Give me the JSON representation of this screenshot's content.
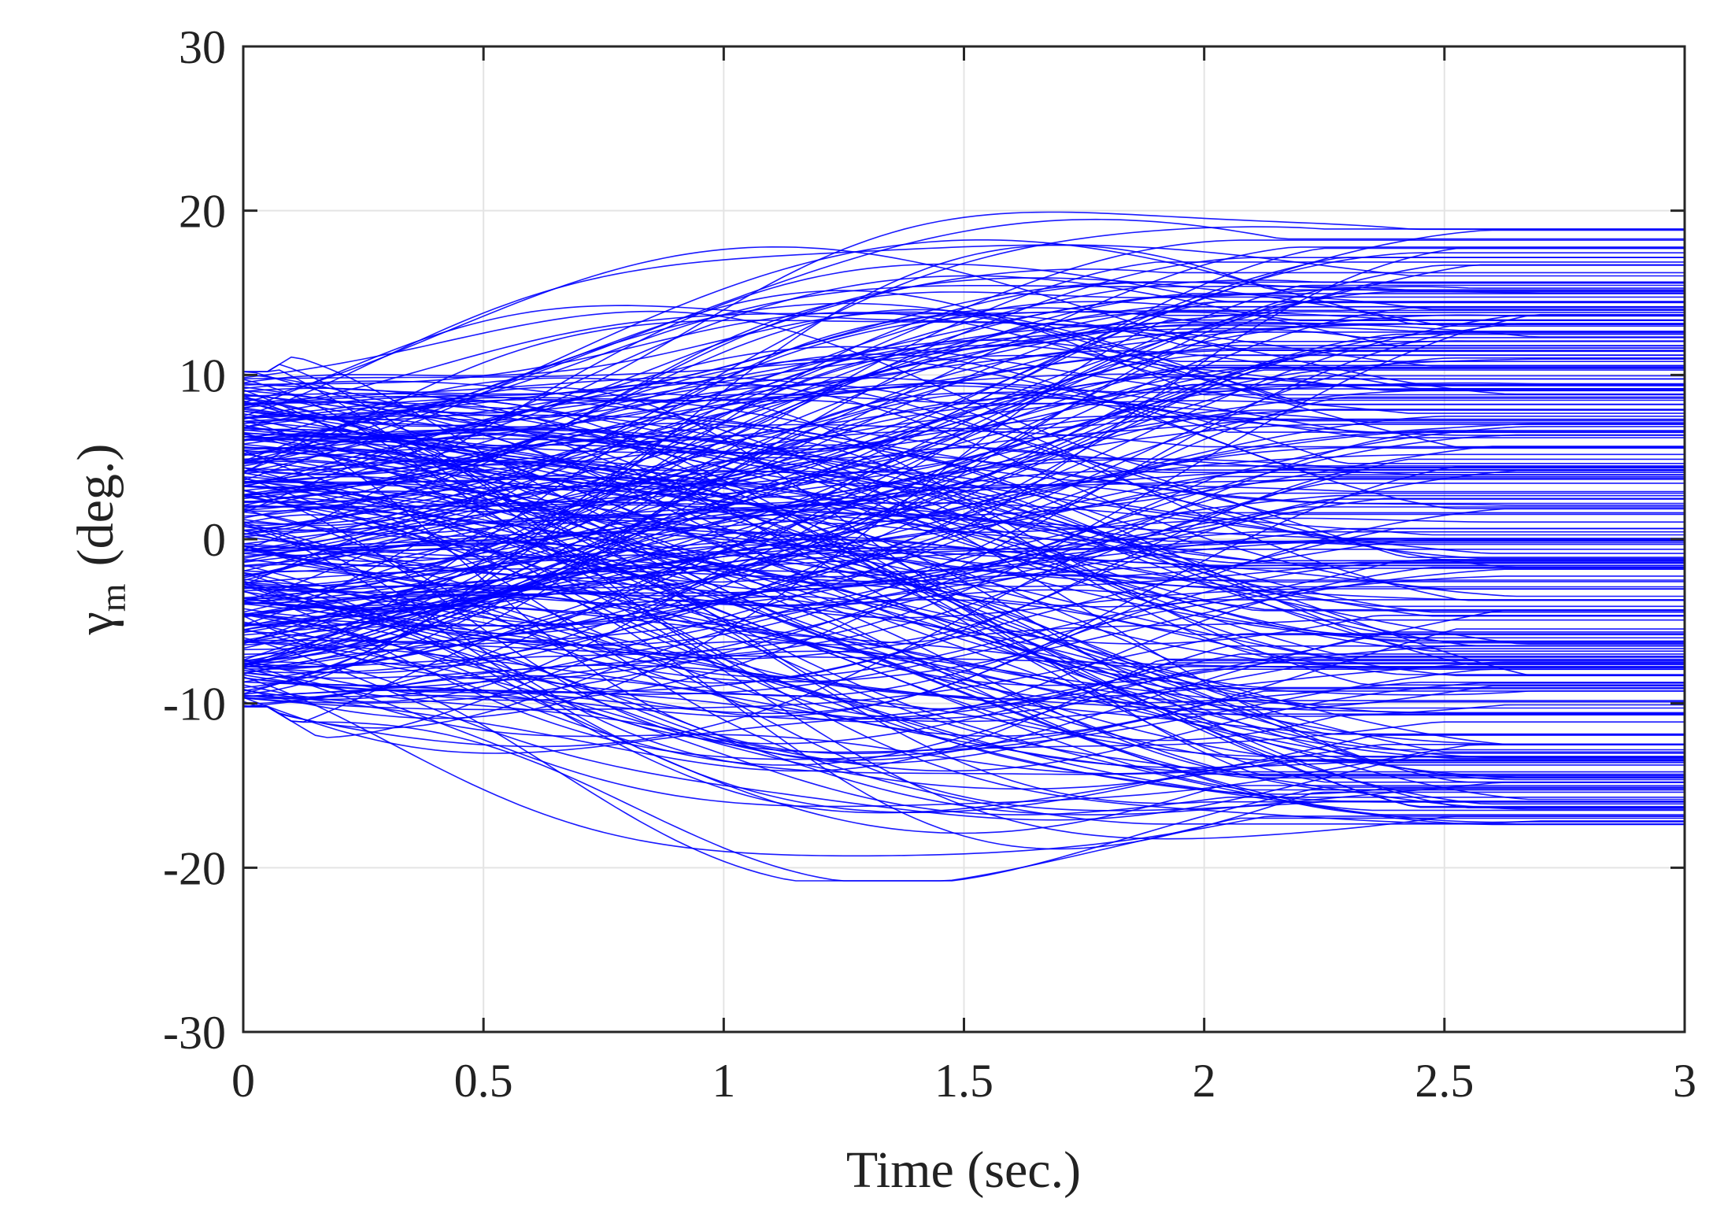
{
  "chart_data": {
    "type": "line",
    "title": "",
    "xlabel": "Time (sec.)",
    "ylabel_symbol": "γ",
    "ylabel_subscript": "m",
    "ylabel_unit": "(deg.)",
    "xlim": [
      0,
      3
    ],
    "ylim": [
      -30,
      30
    ],
    "xticks": [
      0,
      0.5,
      1,
      1.5,
      2,
      2.5,
      3
    ],
    "xtick_labels": [
      "0",
      "0.5",
      "1",
      "1.5",
      "2",
      "2.5",
      "3"
    ],
    "yticks": [
      -30,
      -20,
      -10,
      0,
      10,
      20,
      30
    ],
    "ytick_labels": [
      "-30",
      "-20",
      "-10",
      "0",
      "10",
      "20",
      "30"
    ],
    "grid": true,
    "line_color": "#0000ff",
    "series_description_values": {
      "num_traces": 300,
      "initial_range_deg": [
        -10,
        10
      ],
      "peak_envelope_deg": [
        -20.8,
        20.9
      ],
      "final_range_deg": [
        -17.5,
        19.2
      ]
    },
    "series": [
      {
        "x": [
          0,
          0.5,
          1,
          1.5,
          2,
          2.5,
          3
        ],
        "values": [
          9.8,
          16.2,
          20.1,
          20.9,
          20.0,
          19.2,
          19.2
        ]
      },
      {
        "x": [
          0,
          0.5,
          1,
          1.5,
          2,
          2.5,
          3
        ],
        "values": [
          -9.7,
          -15.8,
          -20.2,
          -20.6,
          -19.8,
          -17.5,
          -17.4
        ]
      },
      {
        "x": [
          0,
          0.5,
          1,
          1.5,
          2,
          2.5,
          3
        ],
        "values": [
          5.0,
          10.5,
          14.8,
          16.0,
          14.9,
          14.0,
          14.0
        ]
      },
      {
        "x": [
          0,
          0.5,
          1,
          1.5,
          2,
          2.5,
          3
        ],
        "values": [
          -4.8,
          -10.0,
          -14.0,
          -15.5,
          -13.0,
          -12.2,
          -12.2
        ]
      },
      {
        "x": [
          0,
          0.5,
          1,
          1.5,
          2,
          2.5,
          3
        ],
        "values": [
          0.5,
          2.0,
          3.1,
          2.0,
          0.9,
          0.5,
          0.5
        ]
      },
      {
        "x": [
          0,
          0.5,
          1,
          1.5,
          2,
          2.5,
          3
        ],
        "values": [
          -1.2,
          -3.5,
          -6.0,
          -7.2,
          -6.0,
          -5.5,
          -5.5
        ]
      }
    ]
  }
}
